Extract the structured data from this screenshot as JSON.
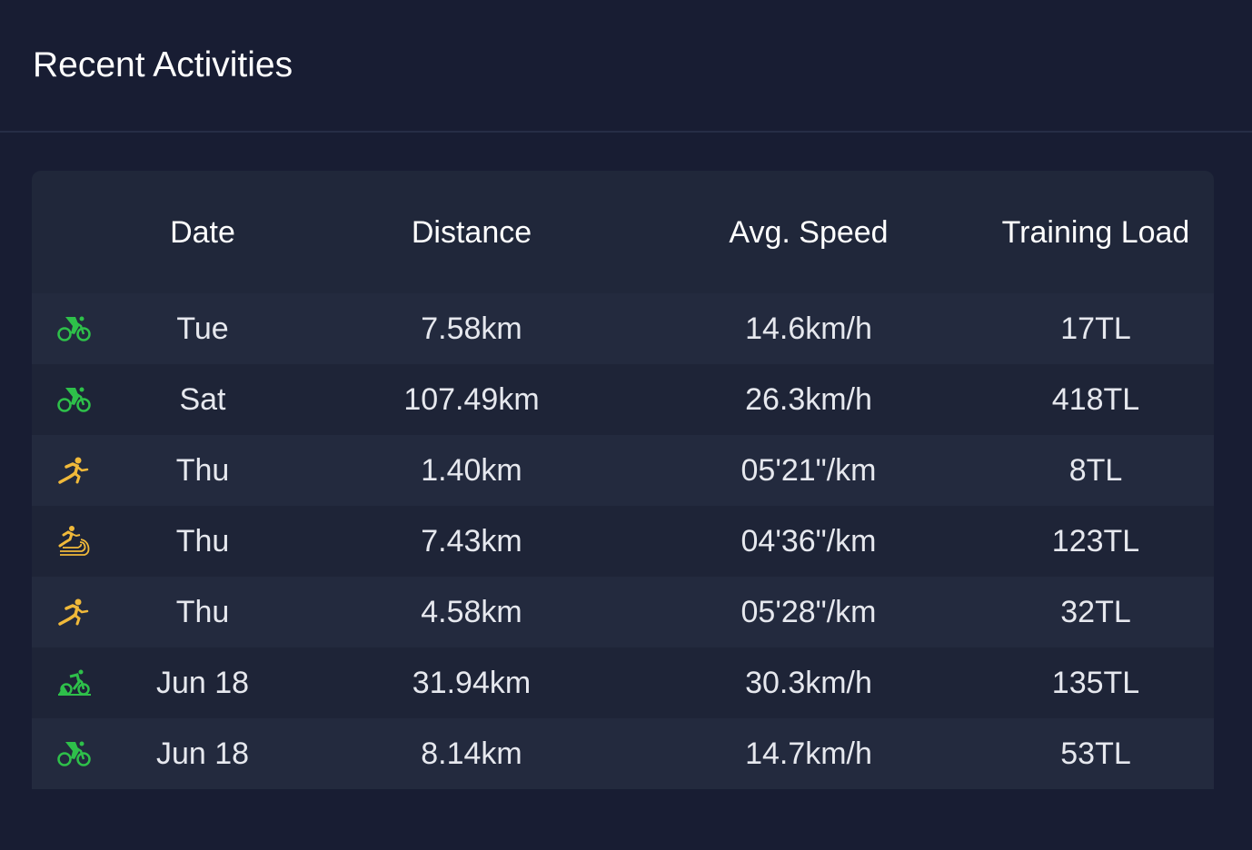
{
  "header": {
    "title": "Recent Activities"
  },
  "colors": {
    "cycling": "#2ec04a",
    "running": "#f0b93a"
  },
  "table": {
    "columns": [
      "",
      "Date",
      "Distance",
      "Avg. Speed",
      "Training Load"
    ],
    "rows": [
      {
        "icon": "road-cycling-icon",
        "date": "Tue",
        "distance": "7.58km",
        "speed": "14.6km/h",
        "load": "17TL"
      },
      {
        "icon": "road-cycling-icon",
        "date": "Sat",
        "distance": "107.49km",
        "speed": "26.3km/h",
        "load": "418TL"
      },
      {
        "icon": "running-icon",
        "date": "Thu",
        "distance": "1.40km",
        "speed": "05'21\"/km",
        "load": "8TL"
      },
      {
        "icon": "track-running-icon",
        "date": "Thu",
        "distance": "7.43km",
        "speed": "04'36\"/km",
        "load": "123TL"
      },
      {
        "icon": "running-icon",
        "date": "Thu",
        "distance": "4.58km",
        "speed": "05'28\"/km",
        "load": "32TL"
      },
      {
        "icon": "mountain-biking-icon",
        "date": "Jun 18",
        "distance": "31.94km",
        "speed": "30.3km/h",
        "load": "135TL"
      },
      {
        "icon": "road-cycling-icon",
        "date": "Jun 18",
        "distance": "8.14km",
        "speed": "14.7km/h",
        "load": "53TL"
      }
    ]
  }
}
